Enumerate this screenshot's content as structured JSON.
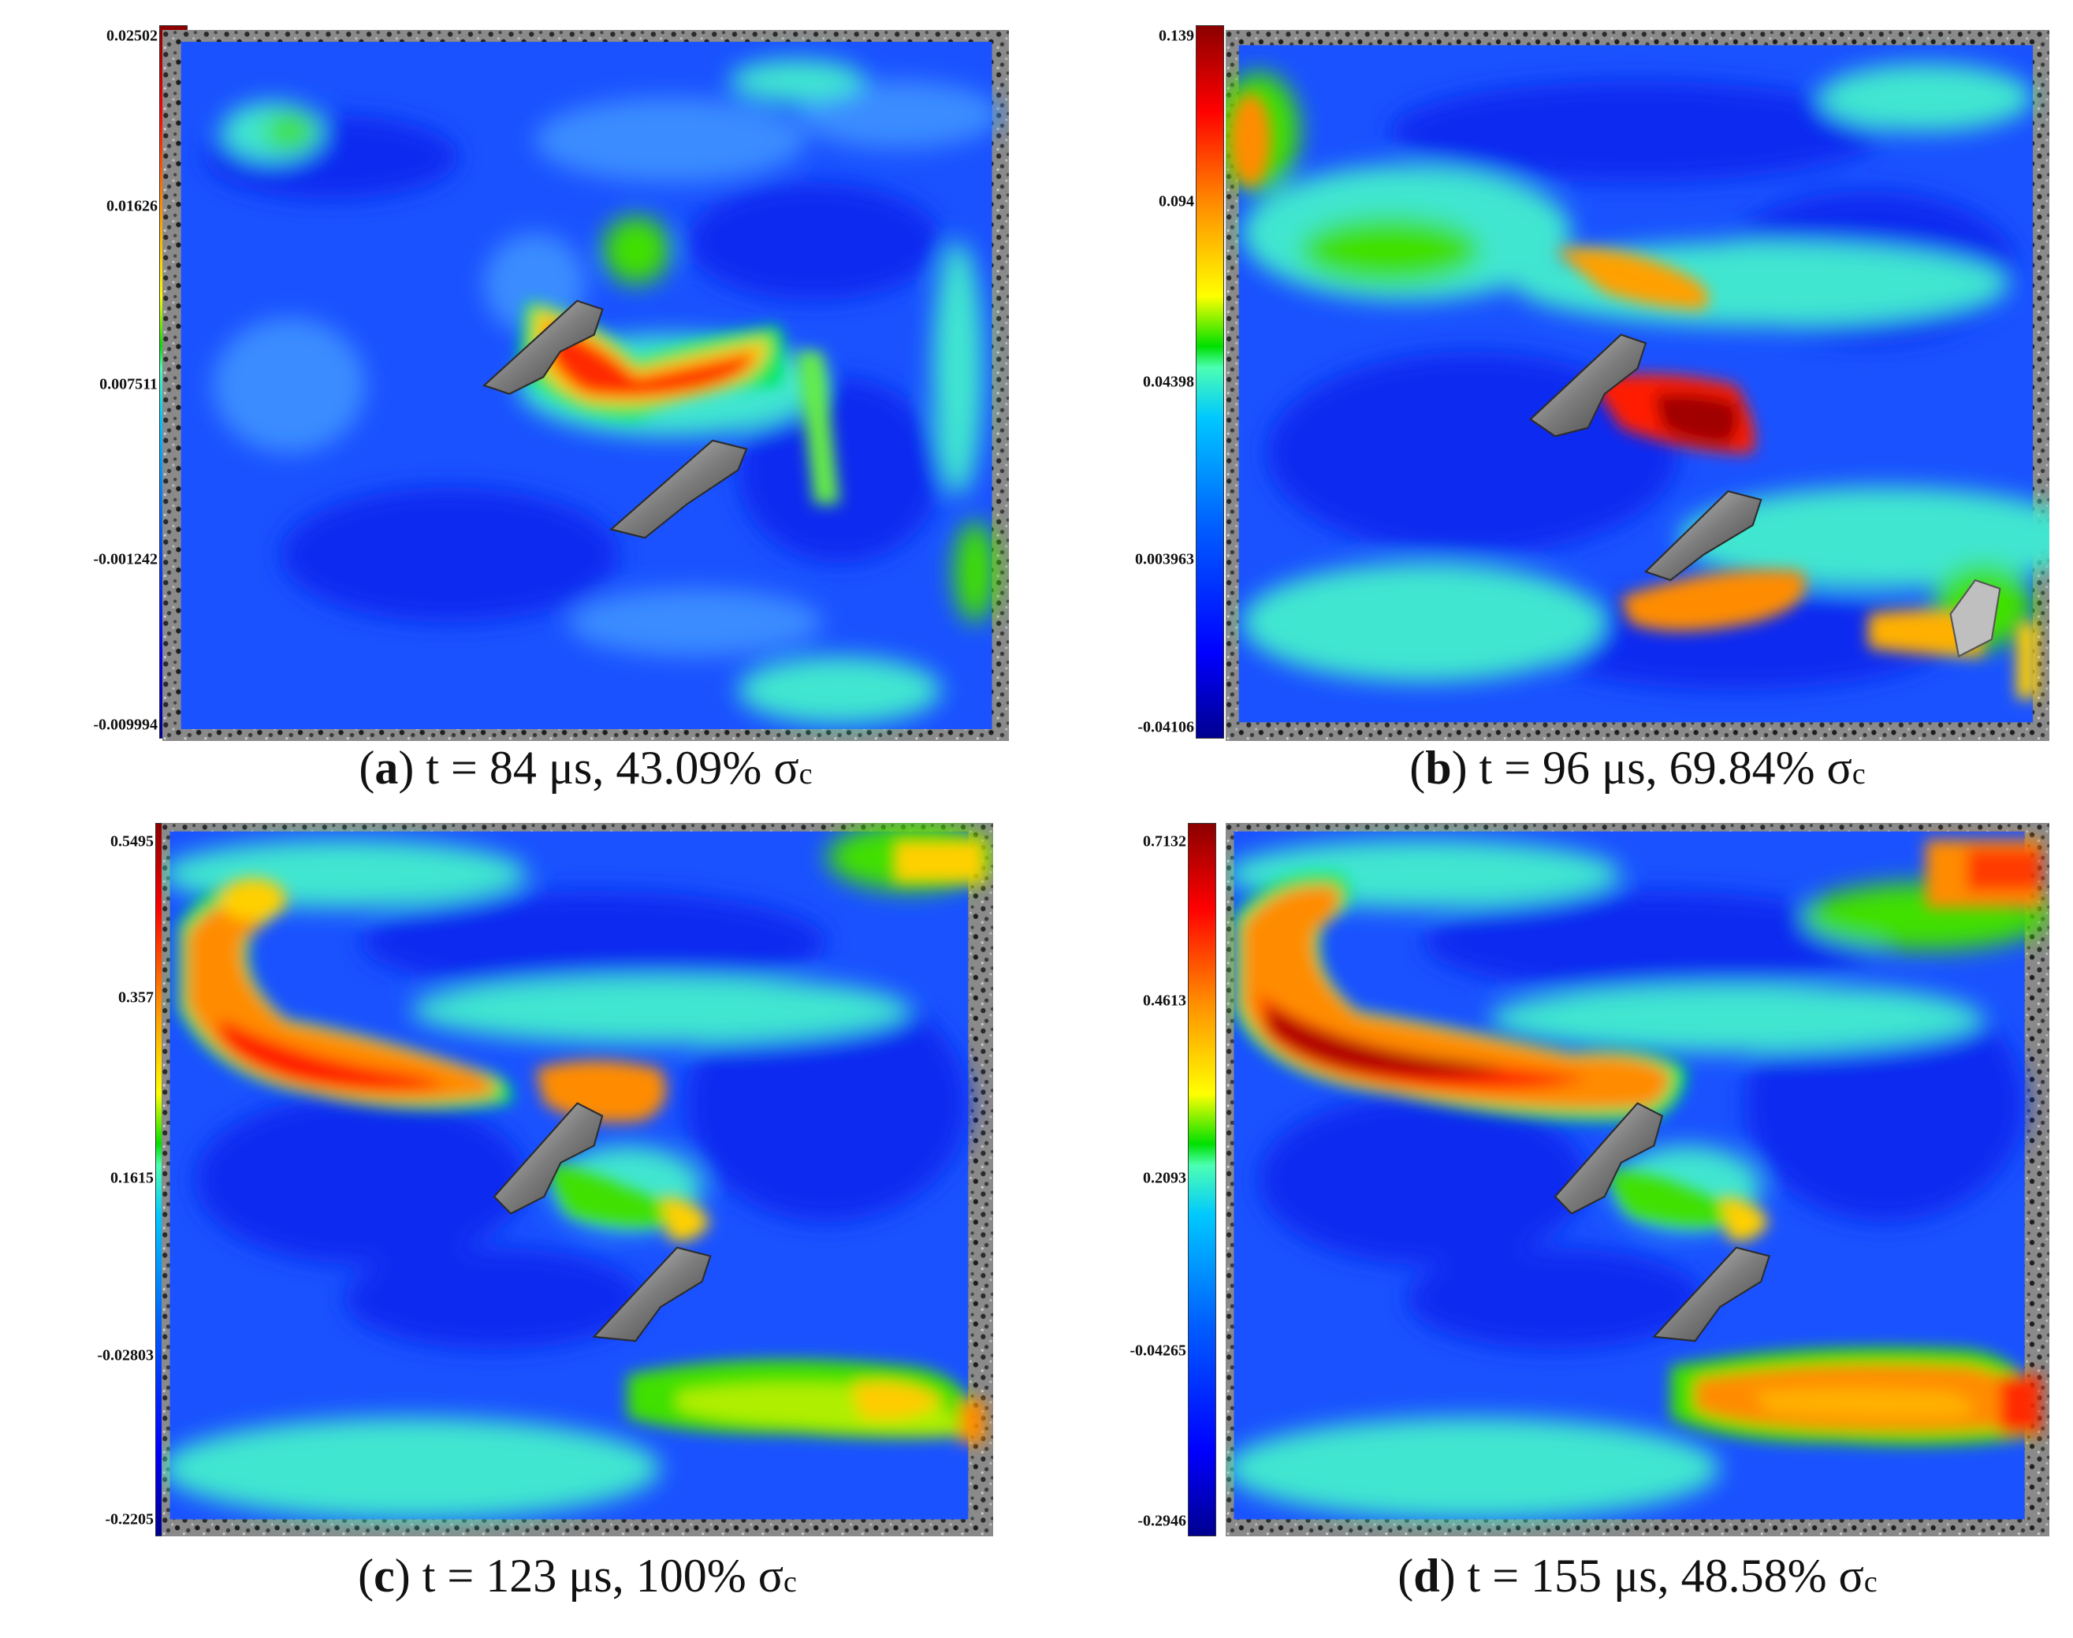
{
  "figure": {
    "colormap": [
      "#00008f",
      "#0000ff",
      "#0060ff",
      "#00c8ff",
      "#4cffb3",
      "#00e000",
      "#ffff00",
      "#ff8c00",
      "#ff0000",
      "#8b0000"
    ],
    "panels": [
      {
        "id": "a",
        "letter": "a",
        "caption_text": " t = 84 μs, 43.09% σ",
        "caption_sub": "c",
        "scale_ticks": [
          "0.02502",
          "0.01626",
          "0.007511",
          "-0.001242",
          "-0.009994"
        ]
      },
      {
        "id": "b",
        "letter": "b",
        "caption_text": " t = 96 μs, 69.84% σ",
        "caption_sub": "c",
        "scale_ticks": [
          "0.139",
          "0.094",
          "0.04398",
          "0.003963",
          "-0.04106"
        ]
      },
      {
        "id": "c",
        "letter": "c",
        "caption_text": " t = 123 μs, 100% σ",
        "caption_sub": "c",
        "scale_ticks": [
          "0.5495",
          "0.357",
          "0.1615",
          "-0.02803",
          "-0.2205"
        ]
      },
      {
        "id": "d",
        "letter": "d",
        "caption_text": " t = 155 μs, 48.58% σ",
        "caption_sub": "c",
        "scale_ticks": [
          "0.7132",
          "0.4613",
          "0.2093",
          "-0.04265",
          "-0.2946"
        ]
      }
    ]
  }
}
